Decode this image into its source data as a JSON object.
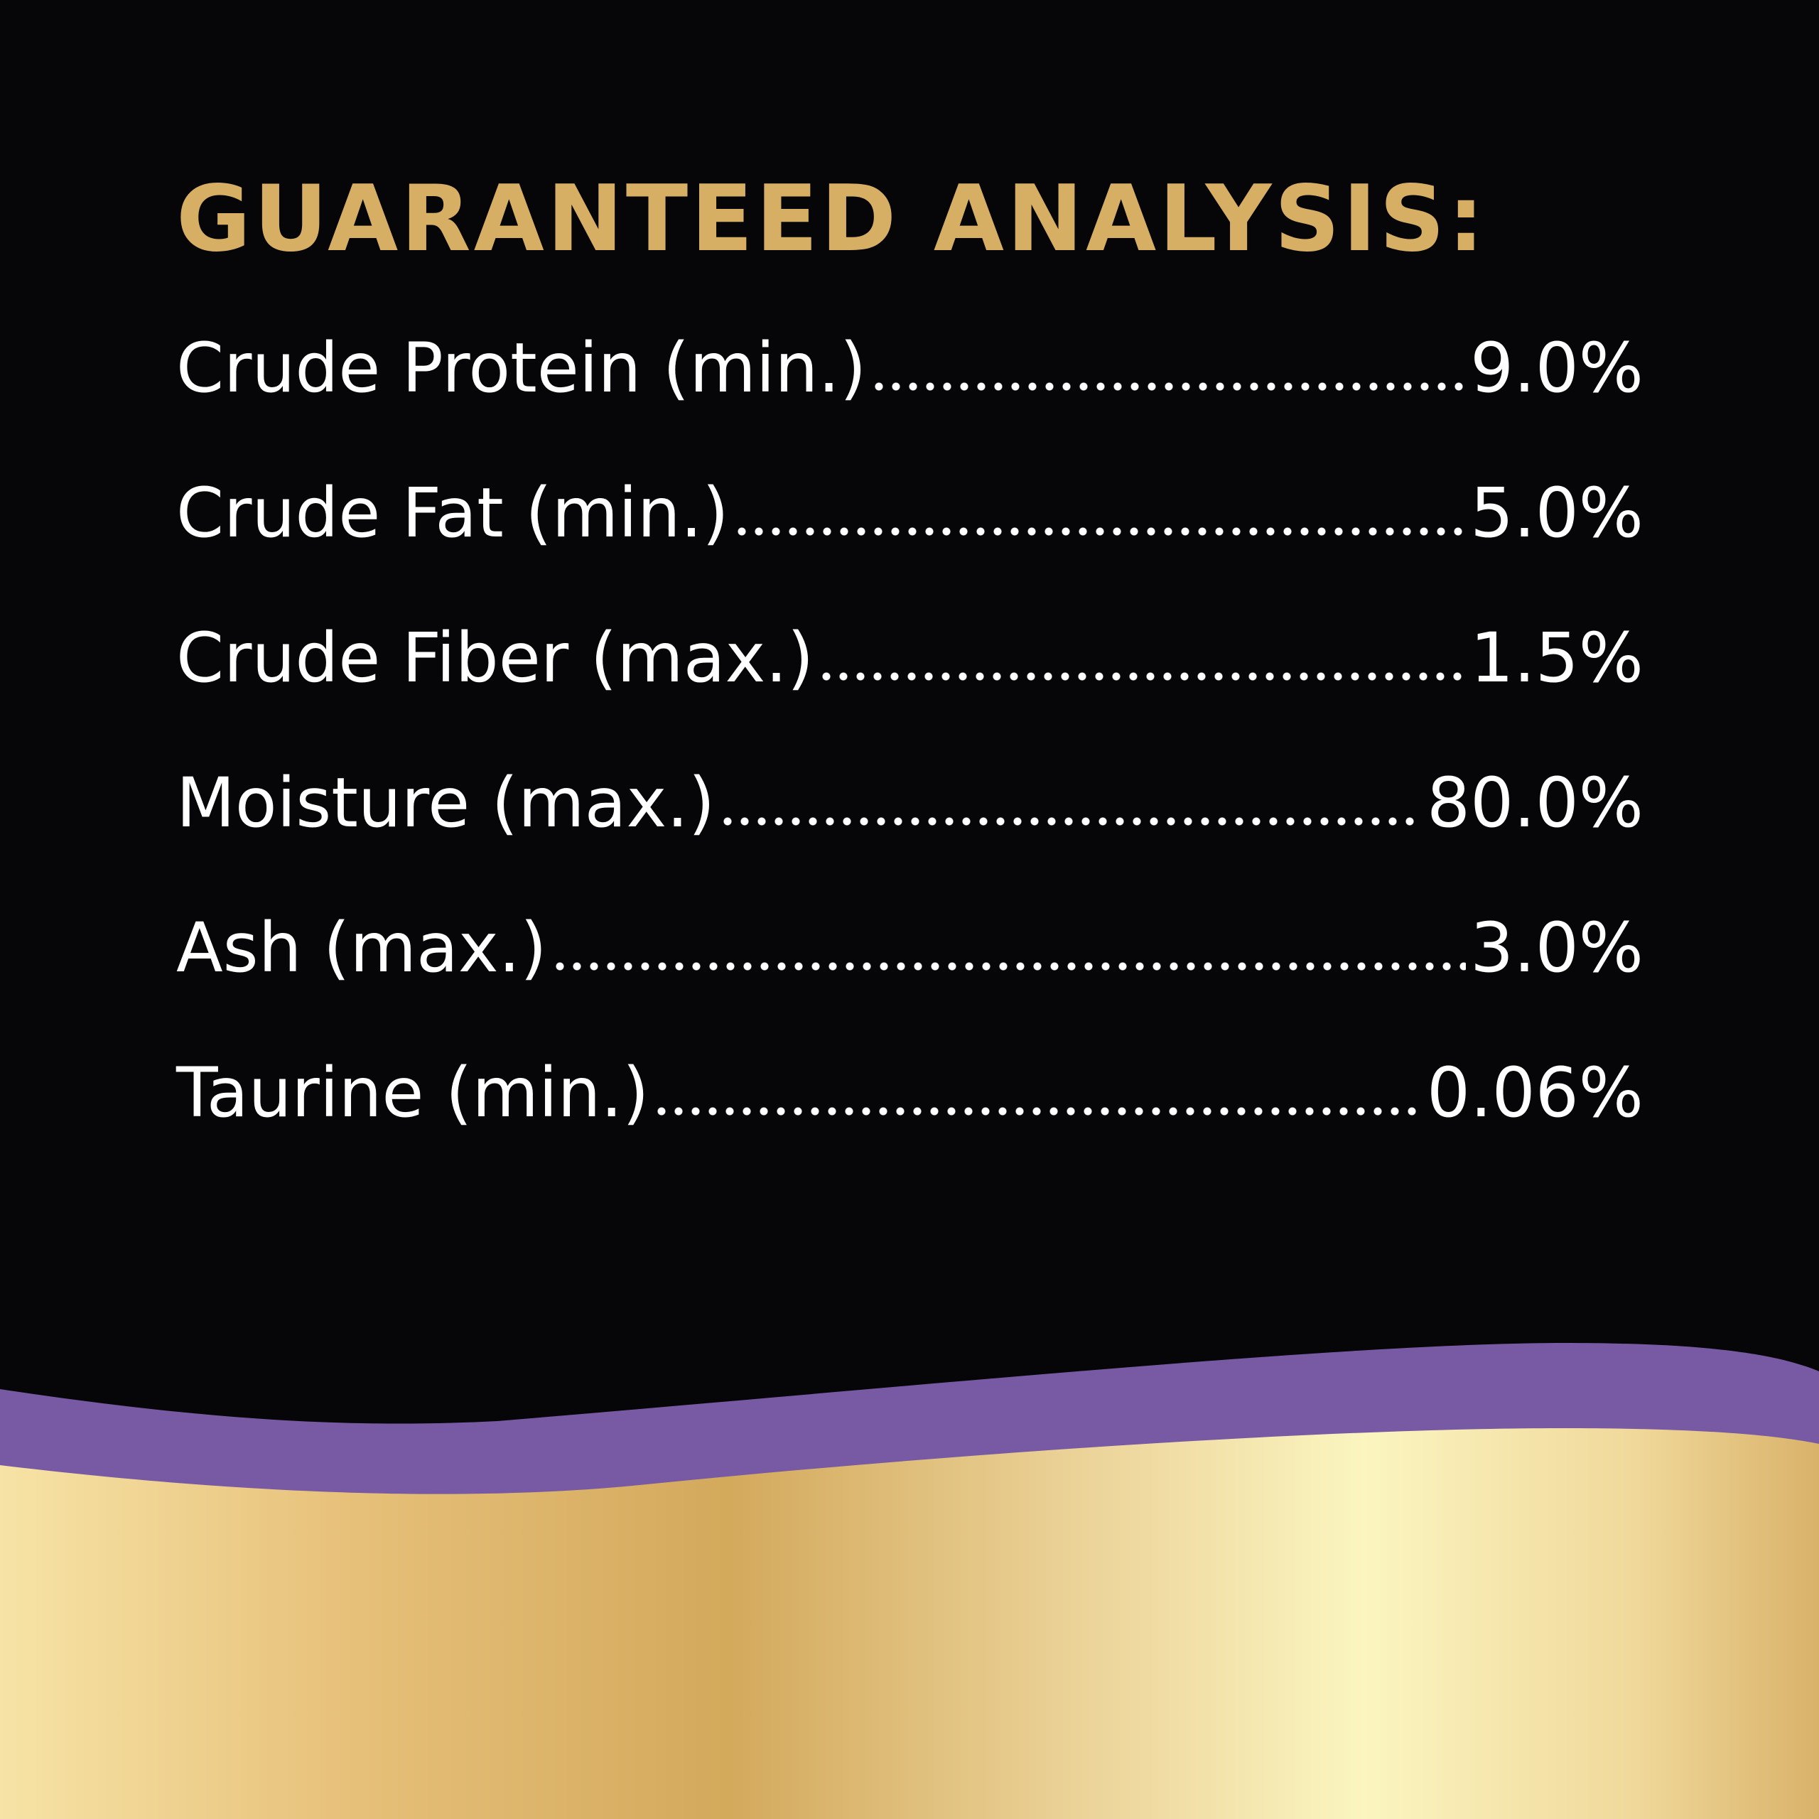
{
  "header": {
    "title": "GUARANTEED ANALYSIS:"
  },
  "table": {
    "rows": [
      [
        "Crude Protein (min.)",
        "9.0%"
      ],
      [
        "Crude Fat (min.)",
        "5.0%"
      ],
      [
        "Crude Fiber (max.)",
        "1.5%"
      ],
      [
        "Moisture (max.)",
        "80.0%"
      ],
      [
        "Ash (max.)",
        "3.0%"
      ],
      [
        "Taurine (min.)",
        "0.06%"
      ]
    ]
  }
}
